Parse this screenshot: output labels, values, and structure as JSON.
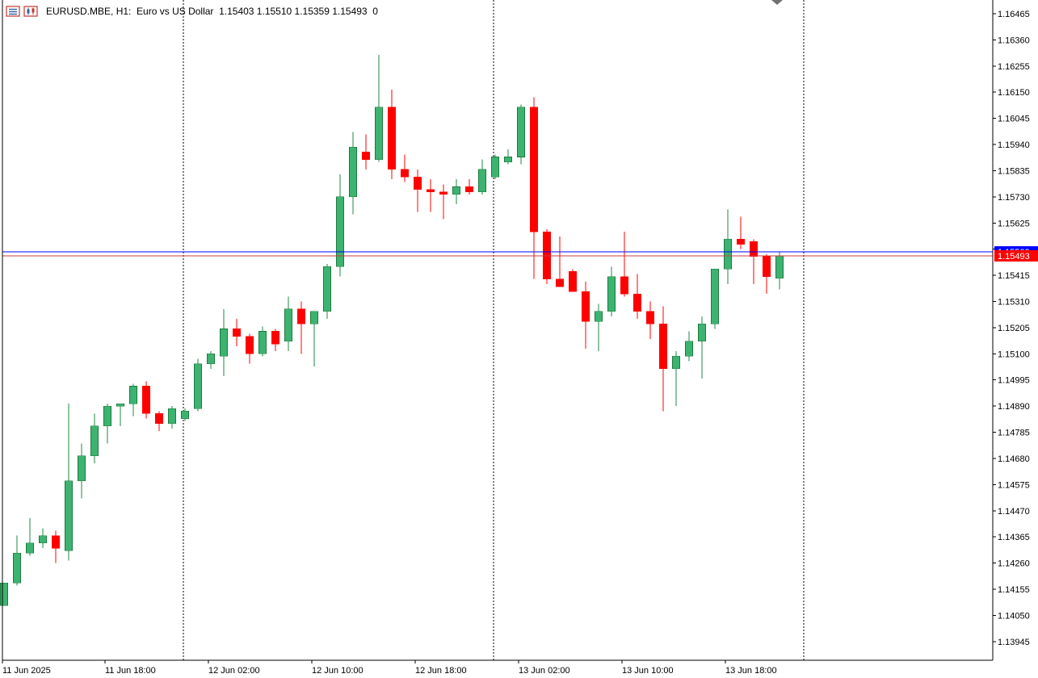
{
  "header": {
    "symbol": "EURUSD.MBE",
    "timeframe": "H1:",
    "description": "Euro vs US Dollar",
    "ohlc": "1.15403 1.15510 1.15359 1.15493",
    "volume": "0"
  },
  "colors": {
    "bull": "#3cb371",
    "bear": "#ff0000",
    "bid_line": "#c83c3c",
    "ask_line": "#0000ff",
    "grid_separator": "#000000",
    "axis": "#000000"
  },
  "price_labels": {
    "bid": "1.15493",
    "ask": "1.15509"
  },
  "chart_data": {
    "type": "candlestick",
    "symbol": "EURUSD.MBE",
    "timeframe": "H1",
    "ylim": [
      1.1387,
      1.1652
    ],
    "y_ticks": [
      "1.16465",
      "1.16360",
      "1.16255",
      "1.16150",
      "1.16045",
      "1.15940",
      "1.15835",
      "1.15730",
      "1.15625",
      "1.15520",
      "1.15415",
      "1.15310",
      "1.15205",
      "1.15100",
      "1.14995",
      "1.14890",
      "1.14785",
      "1.14680",
      "1.14575",
      "1.14470",
      "1.14365",
      "1.14260",
      "1.14155",
      "1.14050",
      "1.13945"
    ],
    "x_ticks": [
      "11 Jun 2025",
      "11 Jun 18:00",
      "12 Jun 02:00",
      "12 Jun 10:00",
      "12 Jun 18:00",
      "13 Jun 02:00",
      "13 Jun 10:00",
      "13 Jun 18:00"
    ],
    "day_separators": [
      "12 Jun",
      "13 Jun",
      "14 Jun"
    ],
    "bid": 1.15493,
    "ask": 1.15509,
    "candles": [
      {
        "o": 1.1409,
        "h": 1.1418,
        "l": 1.1409,
        "c": 1.1418
      },
      {
        "o": 1.1418,
        "h": 1.1437,
        "l": 1.1417,
        "c": 1.143
      },
      {
        "o": 1.143,
        "h": 1.1444,
        "l": 1.1429,
        "c": 1.1434
      },
      {
        "o": 1.1434,
        "h": 1.144,
        "l": 1.1432,
        "c": 1.1437
      },
      {
        "o": 1.1437,
        "h": 1.1439,
        "l": 1.1426,
        "c": 1.1432
      },
      {
        "o": 1.1431,
        "h": 1.149,
        "l": 1.1427,
        "c": 1.1459
      },
      {
        "o": 1.1459,
        "h": 1.1474,
        "l": 1.1452,
        "c": 1.1469
      },
      {
        "o": 1.1469,
        "h": 1.1486,
        "l": 1.1466,
        "c": 1.1481
      },
      {
        "o": 1.1481,
        "h": 1.149,
        "l": 1.1474,
        "c": 1.1489
      },
      {
        "o": 1.1489,
        "h": 1.1489,
        "l": 1.1481,
        "c": 1.149
      },
      {
        "o": 1.149,
        "h": 1.1498,
        "l": 1.1485,
        "c": 1.1497
      },
      {
        "o": 1.1497,
        "h": 1.1499,
        "l": 1.1484,
        "c": 1.1486
      },
      {
        "o": 1.1486,
        "h": 1.1487,
        "l": 1.1479,
        "c": 1.1482
      },
      {
        "o": 1.1482,
        "h": 1.1489,
        "l": 1.148,
        "c": 1.1488
      },
      {
        "o": 1.1484,
        "h": 1.1488,
        "l": 1.1483,
        "c": 1.1487
      },
      {
        "o": 1.1488,
        "h": 1.1508,
        "l": 1.1487,
        "c": 1.1506
      },
      {
        "o": 1.1506,
        "h": 1.1511,
        "l": 1.1504,
        "c": 1.151
      },
      {
        "o": 1.1509,
        "h": 1.1528,
        "l": 1.1501,
        "c": 1.152
      },
      {
        "o": 1.152,
        "h": 1.1524,
        "l": 1.1513,
        "c": 1.1517
      },
      {
        "o": 1.1517,
        "h": 1.1518,
        "l": 1.1506,
        "c": 1.151
      },
      {
        "o": 1.151,
        "h": 1.1521,
        "l": 1.1509,
        "c": 1.1519
      },
      {
        "o": 1.1519,
        "h": 1.152,
        "l": 1.1511,
        "c": 1.1514
      },
      {
        "o": 1.1515,
        "h": 1.1533,
        "l": 1.1511,
        "c": 1.1528
      },
      {
        "o": 1.1528,
        "h": 1.1531,
        "l": 1.151,
        "c": 1.1522
      },
      {
        "o": 1.1522,
        "h": 1.1527,
        "l": 1.1505,
        "c": 1.1527
      },
      {
        "o": 1.1527,
        "h": 1.1546,
        "l": 1.1524,
        "c": 1.1545
      },
      {
        "o": 1.1545,
        "h": 1.1582,
        "l": 1.1541,
        "c": 1.1573
      },
      {
        "o": 1.1573,
        "h": 1.1599,
        "l": 1.1566,
        "c": 1.1593
      },
      {
        "o": 1.1591,
        "h": 1.1598,
        "l": 1.1584,
        "c": 1.1588
      },
      {
        "o": 1.1588,
        "h": 1.163,
        "l": 1.1587,
        "c": 1.1609
      },
      {
        "o": 1.1609,
        "h": 1.1616,
        "l": 1.158,
        "c": 1.1584
      },
      {
        "o": 1.1584,
        "h": 1.159,
        "l": 1.1579,
        "c": 1.1581
      },
      {
        "o": 1.1581,
        "h": 1.1584,
        "l": 1.1567,
        "c": 1.1576
      },
      {
        "o": 1.1576,
        "h": 1.158,
        "l": 1.1567,
        "c": 1.1575
      },
      {
        "o": 1.1575,
        "h": 1.1578,
        "l": 1.1564,
        "c": 1.1574
      },
      {
        "o": 1.1574,
        "h": 1.158,
        "l": 1.157,
        "c": 1.1577
      },
      {
        "o": 1.1577,
        "h": 1.158,
        "l": 1.1574,
        "c": 1.1575
      },
      {
        "o": 1.1575,
        "h": 1.1588,
        "l": 1.1574,
        "c": 1.1584
      },
      {
        "o": 1.1581,
        "h": 1.159,
        "l": 1.158,
        "c": 1.1589
      },
      {
        "o": 1.1587,
        "h": 1.1592,
        "l": 1.1586,
        "c": 1.1589
      },
      {
        "o": 1.1589,
        "h": 1.161,
        "l": 1.1586,
        "c": 1.1609
      },
      {
        "o": 1.1609,
        "h": 1.1613,
        "l": 1.154,
        "c": 1.1559
      },
      {
        "o": 1.1559,
        "h": 1.156,
        "l": 1.1538,
        "c": 1.154
      },
      {
        "o": 1.154,
        "h": 1.1557,
        "l": 1.1537,
        "c": 1.1537
      },
      {
        "o": 1.1543,
        "h": 1.1544,
        "l": 1.1535,
        "c": 1.1535
      },
      {
        "o": 1.1535,
        "h": 1.1539,
        "l": 1.1512,
        "c": 1.1523
      },
      {
        "o": 1.1523,
        "h": 1.153,
        "l": 1.1511,
        "c": 1.1527
      },
      {
        "o": 1.1527,
        "h": 1.1545,
        "l": 1.1525,
        "c": 1.1541
      },
      {
        "o": 1.1541,
        "h": 1.1559,
        "l": 1.1533,
        "c": 1.1534
      },
      {
        "o": 1.1534,
        "h": 1.1542,
        "l": 1.1524,
        "c": 1.1527
      },
      {
        "o": 1.1527,
        "h": 1.1531,
        "l": 1.1516,
        "c": 1.1522
      },
      {
        "o": 1.1522,
        "h": 1.1529,
        "l": 1.1487,
        "c": 1.1504
      },
      {
        "o": 1.1504,
        "h": 1.1511,
        "l": 1.1489,
        "c": 1.1509
      },
      {
        "o": 1.1509,
        "h": 1.1519,
        "l": 1.1507,
        "c": 1.1515
      },
      {
        "o": 1.1515,
        "h": 1.1525,
        "l": 1.15,
        "c": 1.1522
      },
      {
        "o": 1.1522,
        "h": 1.1544,
        "l": 1.152,
        "c": 1.1544
      },
      {
        "o": 1.1544,
        "h": 1.1568,
        "l": 1.1538,
        "c": 1.1556
      },
      {
        "o": 1.1556,
        "h": 1.1565,
        "l": 1.1552,
        "c": 1.1554
      },
      {
        "o": 1.1555,
        "h": 1.1556,
        "l": 1.1538,
        "c": 1.1549
      },
      {
        "o": 1.1549,
        "h": 1.155,
        "l": 1.1534,
        "c": 1.1541
      },
      {
        "o": 1.15403,
        "h": 1.1551,
        "l": 1.15359,
        "c": 1.15493
      }
    ]
  }
}
